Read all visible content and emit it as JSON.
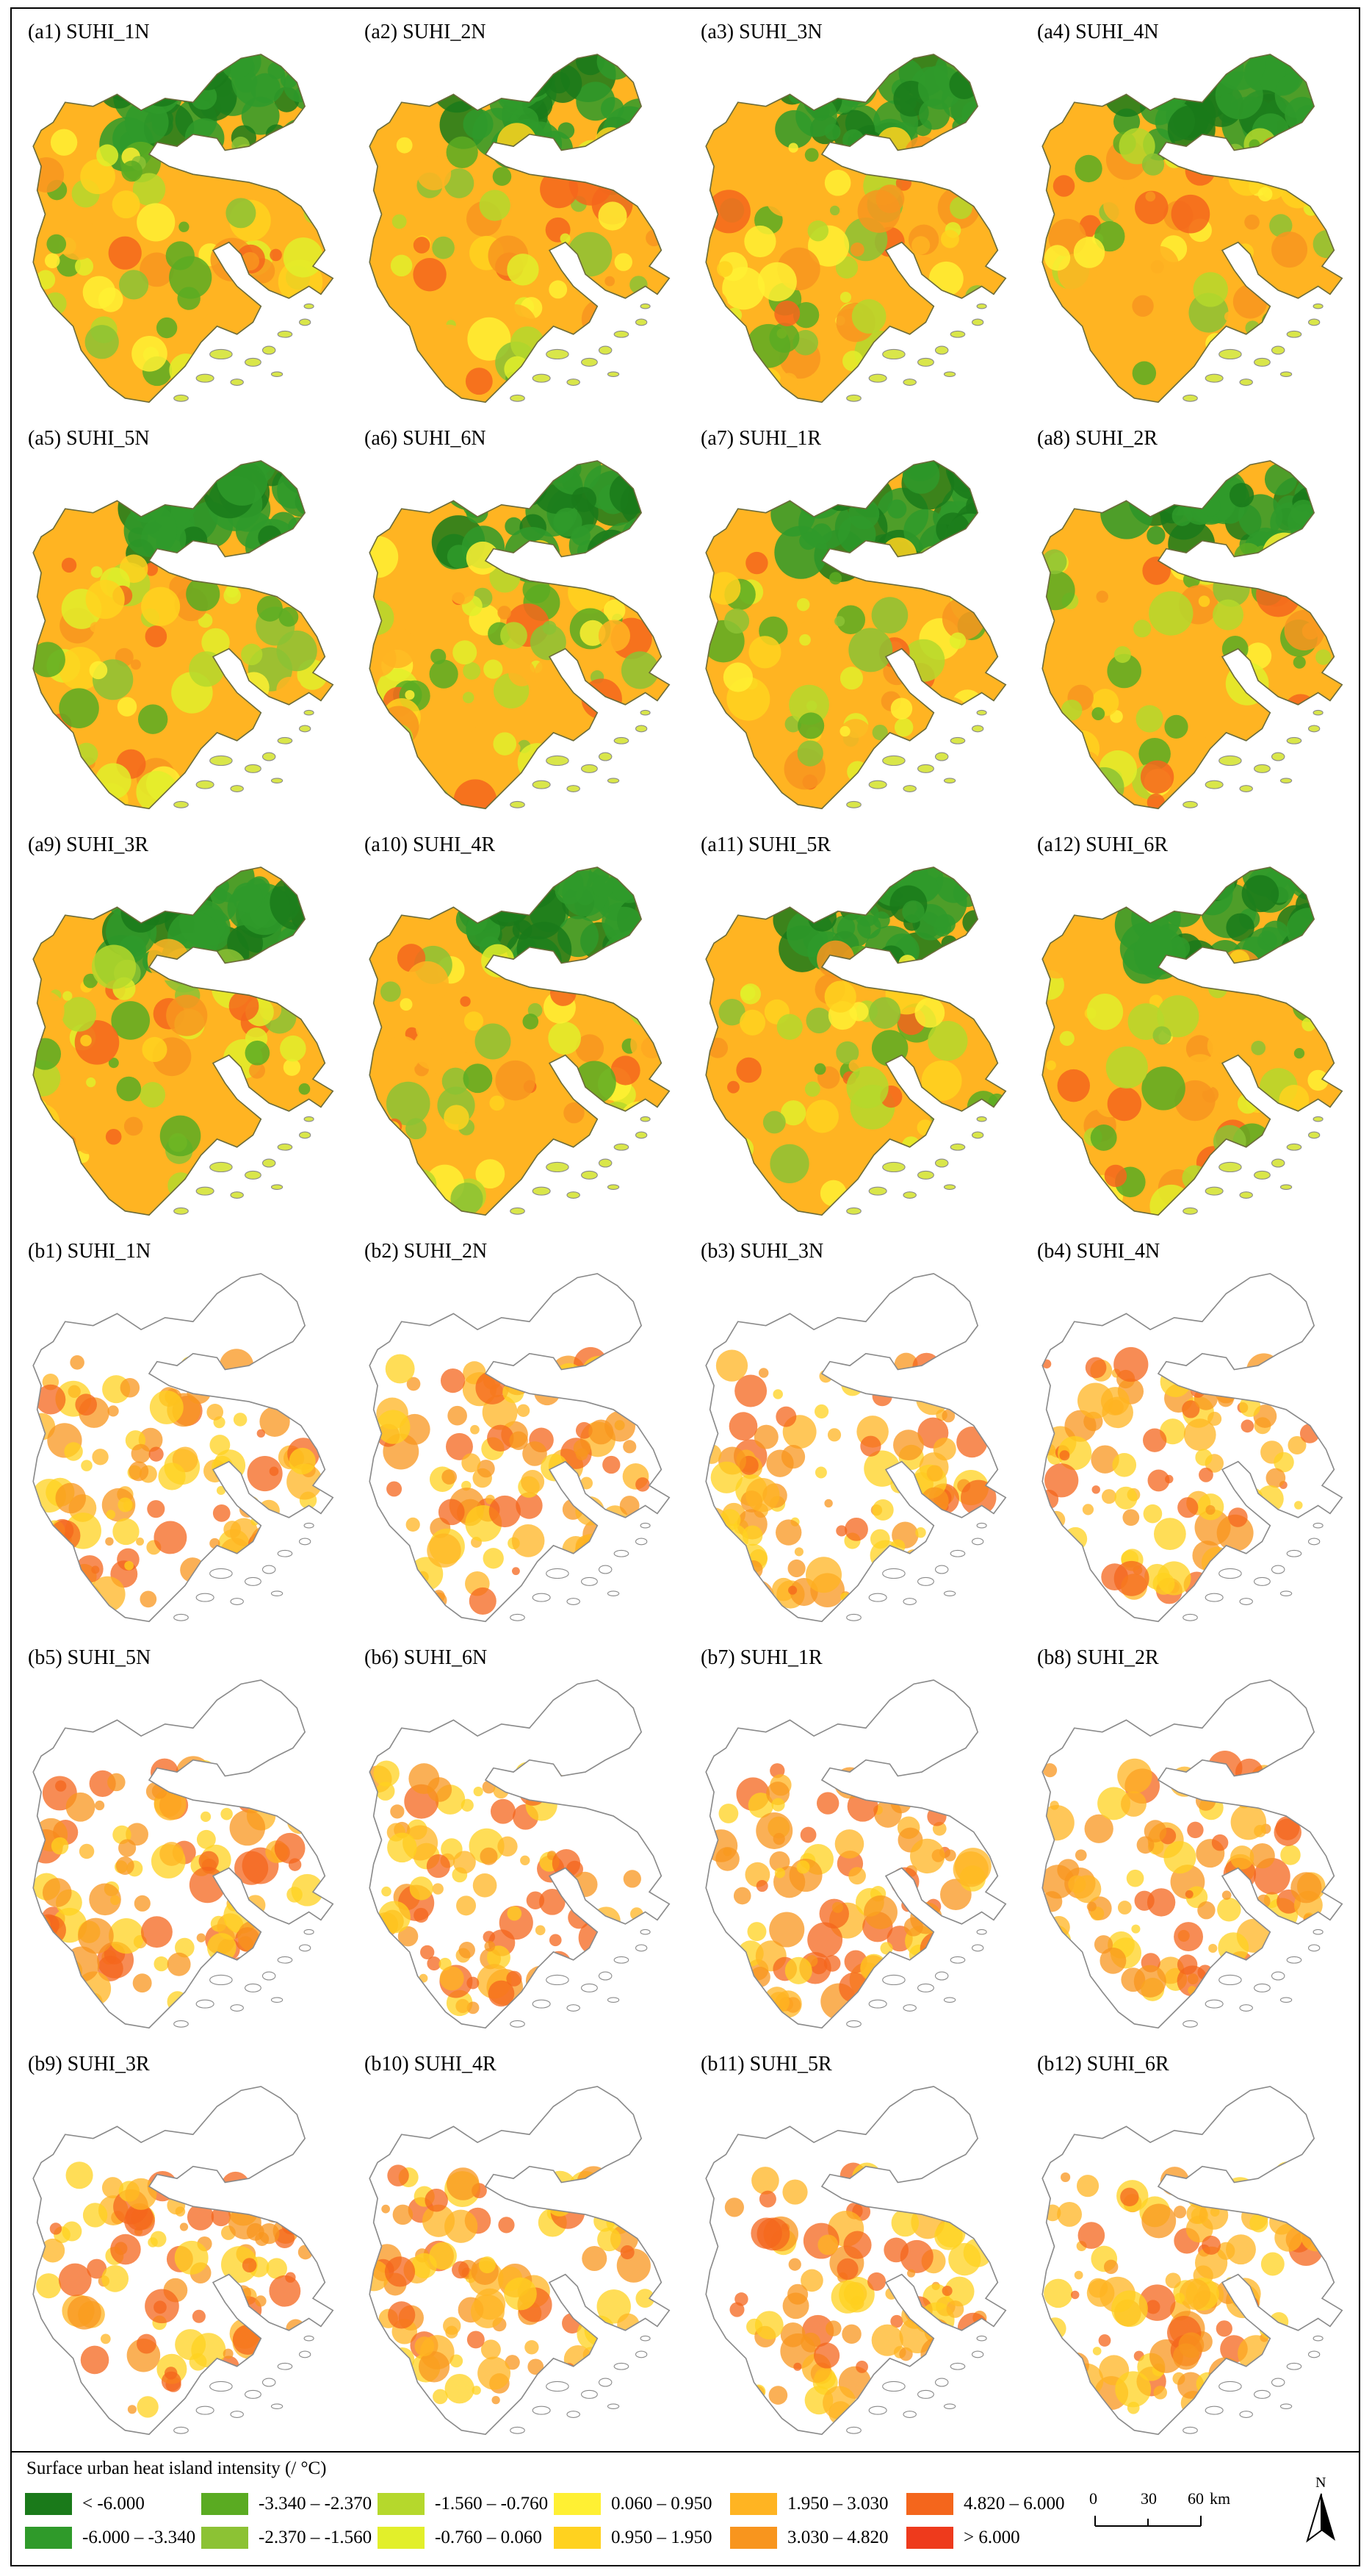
{
  "panels": [
    {
      "label": "(a1) SUHI_1N",
      "type": "a"
    },
    {
      "label": "(a2) SUHI_2N",
      "type": "a"
    },
    {
      "label": "(a3) SUHI_3N",
      "type": "a"
    },
    {
      "label": "(a4) SUHI_4N",
      "type": "a"
    },
    {
      "label": "(a5) SUHI_5N",
      "type": "a"
    },
    {
      "label": "(a6) SUHI_6N",
      "type": "a"
    },
    {
      "label": "(a7) SUHI_1R",
      "type": "a"
    },
    {
      "label": "(a8) SUHI_2R",
      "type": "a"
    },
    {
      "label": "(a9) SUHI_3R",
      "type": "a"
    },
    {
      "label": "(a10) SUHI_4R",
      "type": "a"
    },
    {
      "label": "(a11) SUHI_5R",
      "type": "a"
    },
    {
      "label": "(a12) SUHI_6R",
      "type": "a"
    },
    {
      "label": "(b1) SUHI_1N",
      "type": "b"
    },
    {
      "label": "(b2) SUHI_2N",
      "type": "b"
    },
    {
      "label": "(b3) SUHI_3N",
      "type": "b"
    },
    {
      "label": "(b4) SUHI_4N",
      "type": "b"
    },
    {
      "label": "(b5) SUHI_5N",
      "type": "b"
    },
    {
      "label": "(b6) SUHI_6N",
      "type": "b"
    },
    {
      "label": "(b7) SUHI_1R",
      "type": "b"
    },
    {
      "label": "(b8) SUHI_2R",
      "type": "b"
    },
    {
      "label": "(b9) SUHI_3R",
      "type": "b"
    },
    {
      "label": "(b10) SUHI_4R",
      "type": "b"
    },
    {
      "label": "(b11) SUHI_5R",
      "type": "b"
    },
    {
      "label": "(b12) SUHI_6R",
      "type": "b"
    }
  ],
  "legend": {
    "title": "Surface urban heat island intensity (/ °C)",
    "classes": [
      {
        "label": "< -6.000",
        "color": "#1a7a1a"
      },
      {
        "label": "-6.000 – -3.340",
        "color": "#2f9a2a"
      },
      {
        "label": "-3.340 – -2.370",
        "color": "#5aab22"
      },
      {
        "label": "-2.370 – -1.560",
        "color": "#8cc234"
      },
      {
        "label": "-1.560 – -0.760",
        "color": "#b5d82c"
      },
      {
        "label": "-0.760 – 0.060",
        "color": "#e2ef2a"
      },
      {
        "label": "0.060 – 0.950",
        "color": "#fff033"
      },
      {
        "label": "0.950 – 1.950",
        "color": "#ffd21f"
      },
      {
        "label": "1.950 – 3.030",
        "color": "#ffb422"
      },
      {
        "label": "3.030 – 4.820",
        "color": "#f8951e"
      },
      {
        "label": "4.820 – 6.000",
        "color": "#f4661c"
      },
      {
        "label": "> 6.000",
        "color": "#ee3a1c"
      }
    ]
  },
  "scale_bar": {
    "ticks": [
      "0",
      "30",
      "60"
    ],
    "unit": "km"
  },
  "north_arrow": {
    "label": "N",
    "icon": "north-arrow-icon"
  }
}
